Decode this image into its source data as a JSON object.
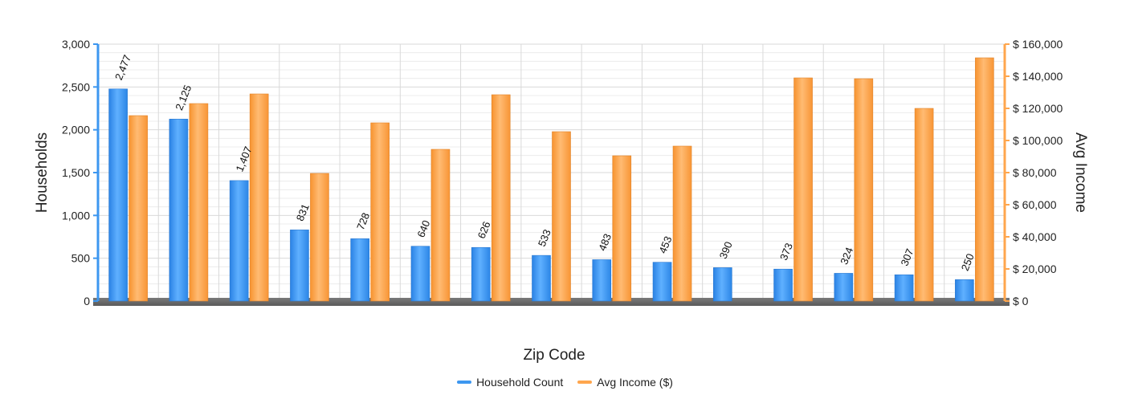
{
  "chart_data": {
    "type": "bar",
    "xlabel": "Zip Code",
    "ylabel": "Households",
    "y2label": "Avg Income",
    "ylim": [
      0,
      3000
    ],
    "y2lim": [
      0,
      160000
    ],
    "yticks": [
      "0",
      "500",
      "1,000",
      "1,500",
      "2,000",
      "2,500",
      "3,000"
    ],
    "y2ticks": [
      "$ 0",
      "$ 20,000",
      "$ 40,000",
      "$ 60,000",
      "$ 80,000",
      "$ 100,000",
      "$ 120,000",
      "$ 140,000",
      "$ 160,000"
    ],
    "categories": [
      "",
      "",
      "",
      "",
      "",
      "",
      "",
      "",
      "",
      "",
      "",
      "",
      "",
      "",
      ""
    ],
    "series": [
      {
        "name": "Household Count",
        "axis": "left",
        "color": "#3d97f0",
        "values": [
          2477,
          2125,
          1407,
          831,
          728,
          640,
          626,
          533,
          483,
          453,
          390,
          373,
          324,
          307,
          250
        ],
        "labels": [
          "2,477",
          "2,125",
          "1,407",
          "831",
          "728",
          "640",
          "626",
          "533",
          "483",
          "453",
          "390",
          "373",
          "324",
          "307",
          "250"
        ]
      },
      {
        "name": "Avg Income ($)",
        "axis": "right",
        "color": "#ffa64d",
        "values": [
          115500,
          123000,
          129000,
          79500,
          111000,
          94500,
          128500,
          105500,
          90500,
          96500,
          0,
          139000,
          138500,
          120000,
          151500
        ]
      }
    ],
    "grid": true,
    "legend": "bottom-center"
  },
  "colors": {
    "left_axis": "#3d97f0",
    "right_axis": "#ffa64d",
    "floor": "#6a6a6a",
    "grid_major": "#d9d9d9",
    "grid_minor": "#ececec"
  }
}
